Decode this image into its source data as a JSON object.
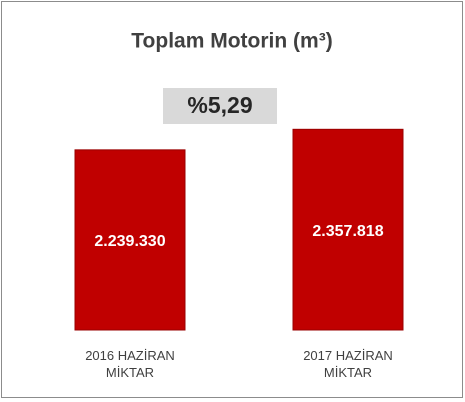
{
  "chart_data": {
    "type": "bar",
    "title": "Toplam Motorin (m³)",
    "annotation": "%5,29",
    "categories": [
      "2016 HAZİRAN MİKTAR",
      "2017 HAZİRAN MİKTAR"
    ],
    "values": [
      2239330,
      2357818
    ],
    "value_labels": [
      "2.239.330",
      "2.357.818"
    ],
    "color": "#c00000",
    "ylim": [
      1200000,
      2400000
    ]
  }
}
